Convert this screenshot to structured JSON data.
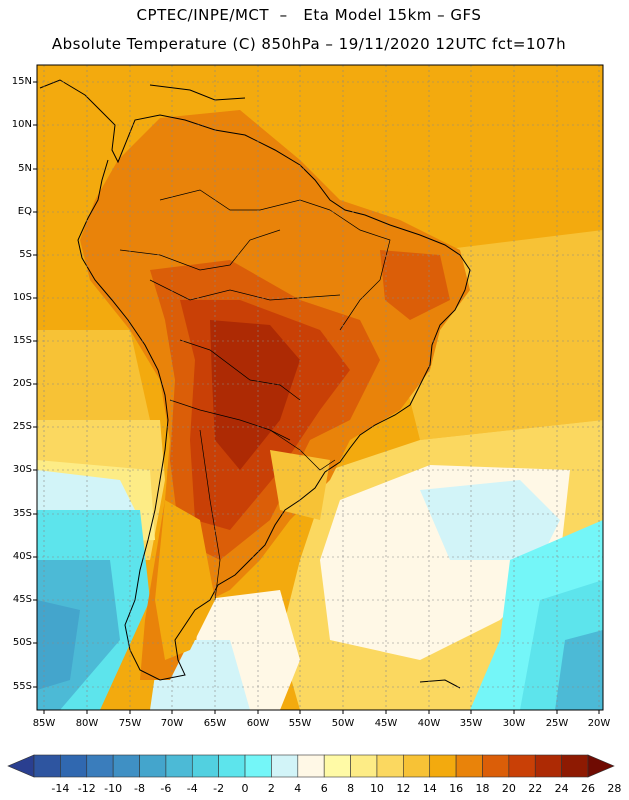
{
  "header": {
    "line1": "CPTEC/INPE/MCT  –   Eta Model 15km – GFS",
    "line2": "Absolute Temperature (C) 850hPa – 19/11/2020 12UTC fct=107h"
  },
  "map": {
    "latitude_labels": [
      "15N",
      "10N",
      "5N",
      "EQ",
      "5S",
      "10S",
      "15S",
      "20S",
      "25S",
      "30S",
      "35S",
      "40S",
      "45S",
      "50S",
      "55S"
    ],
    "longitude_labels": [
      "85W",
      "80W",
      "75W",
      "70W",
      "65W",
      "60W",
      "55W",
      "50W",
      "45W",
      "40W",
      "35W",
      "30W",
      "25W",
      "20W"
    ]
  },
  "colorbar": {
    "levels": [
      "-14",
      "-12",
      "-10",
      "-8",
      "-6",
      "-4",
      "-2",
      "0",
      "2",
      "4",
      "6",
      "8",
      "10",
      "12",
      "14",
      "16",
      "18",
      "20",
      "22",
      "24",
      "26",
      "28"
    ],
    "colors": [
      "#2a3f90",
      "#2e55a0",
      "#3068b0",
      "#3a7dbc",
      "#3f90c4",
      "#44a5cc",
      "#4cbad6",
      "#52d0e0",
      "#5de4ec",
      "#74f6f8",
      "#d2f4f8",
      "#fff8e6",
      "#fffaa6",
      "#fdec86",
      "#fbd860",
      "#f7c236",
      "#f3aa0e",
      "#e9830a",
      "#db5e08",
      "#c94006",
      "#ad2a04",
      "#8e1a02",
      "#6f0b02"
    ]
  }
}
